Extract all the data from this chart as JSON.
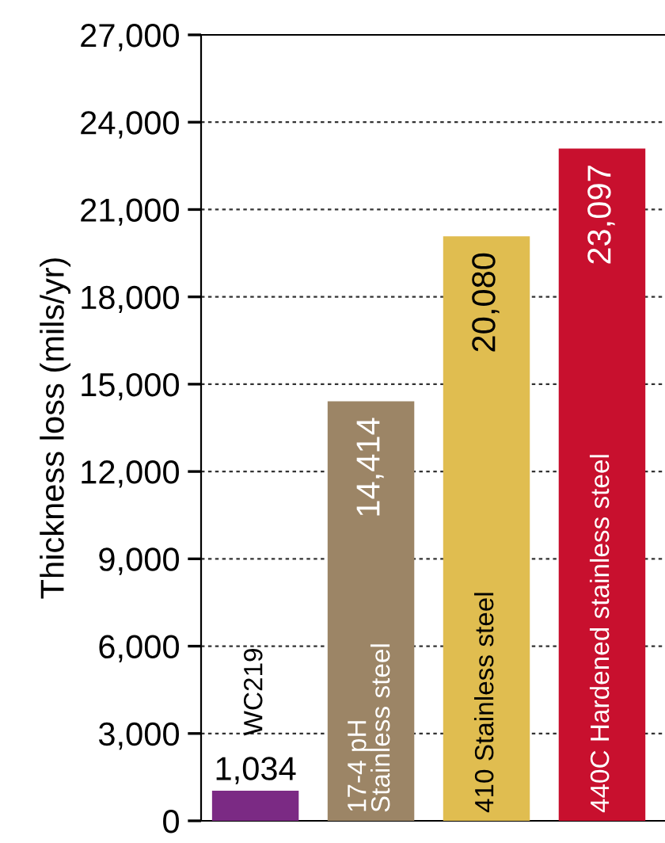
{
  "chart_data": {
    "type": "bar",
    "ylabel": "Thickness loss (mils/yr)",
    "categories": [
      "WC219",
      "17-4 pH\nStainless steel",
      "410 Stainless steel",
      "440C Hardened stainless steel"
    ],
    "values": [
      1034,
      14414,
      20080,
      23097
    ],
    "colors": [
      "#7b2a84",
      "#9c8566",
      "#e0bd50",
      "#c8102e"
    ],
    "value_labels": [
      "1,034",
      "14,414",
      "20,080",
      "23,097"
    ],
    "ylim": [
      0,
      27000
    ],
    "yticks": [
      {
        "value": 0,
        "label": "0"
      },
      {
        "value": 3000,
        "label": "3,000"
      },
      {
        "value": 6000,
        "label": "6,000"
      },
      {
        "value": 9000,
        "label": "9,000"
      },
      {
        "value": 12000,
        "label": "12,000"
      },
      {
        "value": 15000,
        "label": "15,000"
      },
      {
        "value": 18000,
        "label": "18,000"
      },
      {
        "value": 21000,
        "label": "21,000"
      },
      {
        "value": 24000,
        "label": "24,000"
      },
      {
        "value": 27000,
        "label": "27,000"
      }
    ],
    "grid": "y"
  }
}
